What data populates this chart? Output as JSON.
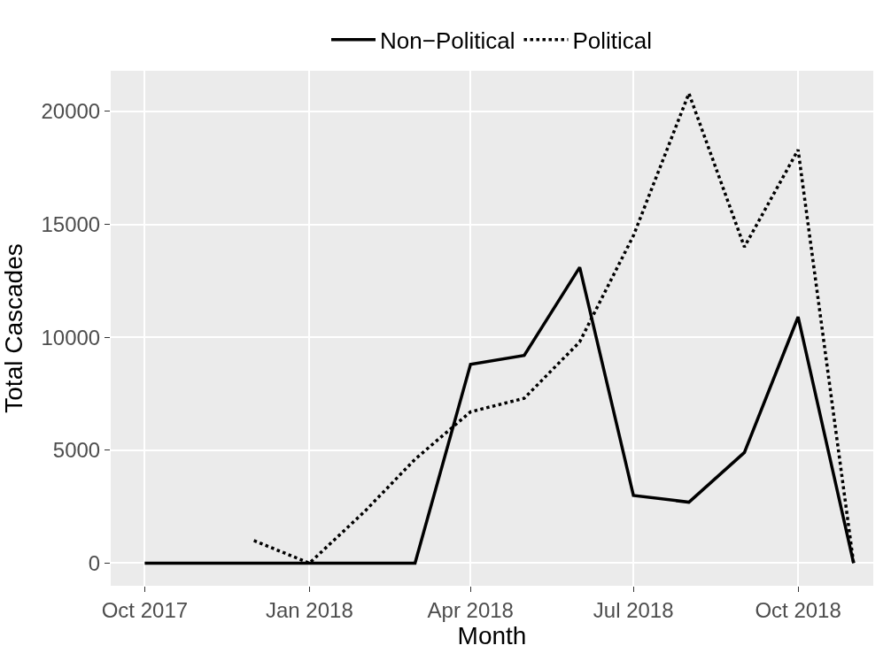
{
  "chart_data": {
    "type": "line",
    "xlabel": "Month",
    "ylabel": "Total Cascades",
    "x": [
      "2017-10",
      "2017-11",
      "2017-12",
      "2018-01",
      "2018-02",
      "2018-03",
      "2018-04",
      "2018-05",
      "2018-06",
      "2018-07",
      "2018-08",
      "2018-09",
      "2018-10",
      "2018-11"
    ],
    "series": [
      {
        "name": "Non−Political",
        "color": "#000000",
        "line_style": "solid",
        "values": [
          0,
          0,
          0,
          0,
          0,
          0,
          8800,
          9200,
          13100,
          3000,
          2700,
          4900,
          10900,
          0
        ]
      },
      {
        "name": "Political",
        "color": "#000000",
        "line_style": "dotted",
        "values": [
          null,
          null,
          1000,
          0,
          2300,
          4600,
          6700,
          7300,
          9800,
          14500,
          20800,
          14000,
          18300,
          0
        ]
      }
    ],
    "xlim": [
      "2017-09-12",
      "2018-11-12"
    ],
    "xticks": [
      {
        "value": "2017-10",
        "label": "Oct 2017"
      },
      {
        "value": "2018-01",
        "label": "Jan 2018"
      },
      {
        "value": "2018-04",
        "label": "Apr 2018"
      },
      {
        "value": "2018-07",
        "label": "Jul 2018"
      },
      {
        "value": "2018-10",
        "label": "Oct 2018"
      }
    ],
    "ylim": [
      -1000,
      21800
    ],
    "yticks": [
      0,
      5000,
      10000,
      15000,
      20000
    ],
    "grid": true,
    "legend": "top",
    "marker": "none"
  }
}
